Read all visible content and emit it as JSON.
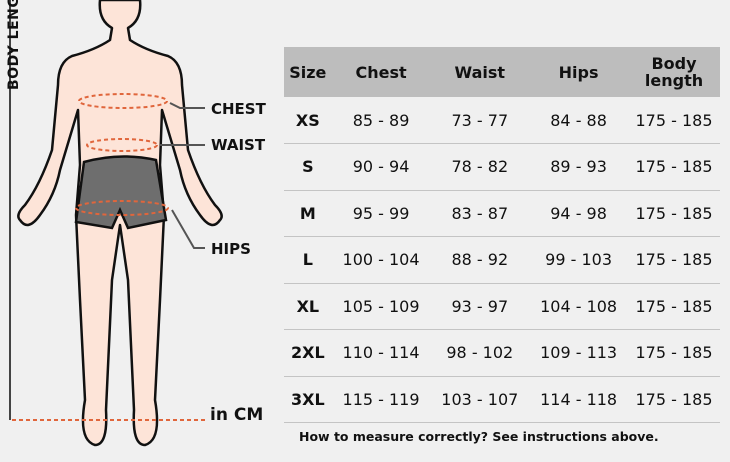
{
  "figure": {
    "vertical_label": "BODY LENGTH",
    "labels": {
      "chest": "CHEST",
      "waist": "WAIST",
      "hips": "HIPS"
    },
    "unit": "in CM",
    "colors": {
      "skin": "#fde4d8",
      "shorts": "#6e6e6e",
      "measure": "#e0663c"
    }
  },
  "table": {
    "headers": [
      "Size",
      "Chest",
      "Waist",
      "Hips",
      "Body length"
    ],
    "rows": [
      [
        "XS",
        "85 - 89",
        "73 - 77",
        "84 - 88",
        "175 - 185"
      ],
      [
        "S",
        "90 - 94",
        "78 - 82",
        "89 - 93",
        "175 - 185"
      ],
      [
        "M",
        "95 - 99",
        "83 - 87",
        "94 - 98",
        "175 - 185"
      ],
      [
        "L",
        "100 - 104",
        "88 - 92",
        "99 - 103",
        "175 - 185"
      ],
      [
        "XL",
        "105 - 109",
        "93 - 97",
        "104 - 108",
        "175 - 185"
      ],
      [
        "2XL",
        "110 - 114",
        "98 - 102",
        "109 - 113",
        "175 - 185"
      ],
      [
        "3XL",
        "115 - 119",
        "103 - 107",
        "114 - 118",
        "175 - 185"
      ]
    ],
    "header_bg": "#bdbdbd"
  },
  "footer_note": "How to measure correctly? See instructions above."
}
